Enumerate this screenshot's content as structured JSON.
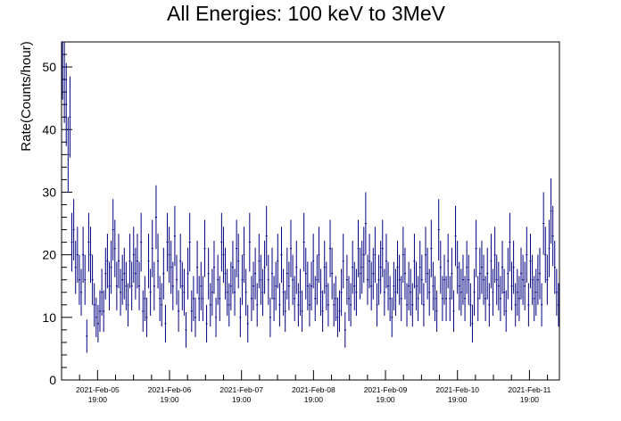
{
  "chart_data": {
    "type": "scatter",
    "title": "All Energies:  100 keV to 3MeV",
    "xlabel": "",
    "ylabel": "Rate(Counts/hour)",
    "x_unit": "hour",
    "xlim": [
      "2021-02-05 07:00",
      "2021-02-12 05:00"
    ],
    "ylim": [
      0,
      54
    ],
    "y_ticks": [
      0,
      10,
      20,
      30,
      40,
      50
    ],
    "x_ticks": [
      {
        "date": "2021-Feb-05",
        "time": "19:00"
      },
      {
        "date": "2021-Feb-06",
        "time": "19:00"
      },
      {
        "date": "2021-Feb-07",
        "time": "19:00"
      },
      {
        "date": "2021-Feb-08",
        "time": "19:00"
      },
      {
        "date": "2021-Feb-09",
        "time": "19:00"
      },
      {
        "date": "2021-Feb-10",
        "time": "19:00"
      },
      {
        "date": "2021-Feb-11",
        "time": "19:00"
      }
    ],
    "x_start": "2021-02-05 07:00",
    "grid": false,
    "marker": "cross with sqrt(N) error bar",
    "series_color": "#00007f",
    "values": [
      52,
      48,
      44,
      36,
      42,
      22,
      24,
      18,
      20,
      16,
      14,
      20,
      16,
      7,
      22,
      20,
      16,
      12,
      10,
      9,
      11,
      14,
      11,
      17,
      19,
      15,
      18,
      24,
      21,
      15,
      19,
      14,
      16,
      17,
      15,
      12,
      19,
      15,
      20,
      17,
      19,
      15,
      22,
      11,
      13,
      10,
      19,
      14,
      21,
      15,
      26,
      19,
      13,
      12,
      17,
      9,
      22,
      20,
      18,
      15,
      23,
      16,
      11,
      19,
      15,
      14,
      8,
      17,
      22,
      11,
      13,
      10,
      18,
      13,
      15,
      13,
      21,
      9,
      17,
      12,
      14,
      18,
      10,
      16,
      13,
      22,
      20,
      17,
      14,
      12,
      15,
      18,
      14,
      21,
      19,
      10,
      16,
      20,
      14,
      9,
      22,
      13,
      15,
      17,
      12,
      19,
      16,
      14,
      18,
      23,
      16,
      10,
      17,
      13,
      15,
      19,
      12,
      20,
      14,
      11,
      17,
      15,
      21,
      16,
      13,
      18,
      12,
      14,
      11,
      22,
      17,
      15,
      12,
      15,
      19,
      13,
      16,
      20,
      14,
      11,
      18,
      15,
      12,
      21,
      17,
      12,
      13,
      10,
      11,
      14,
      19,
      8,
      16,
      13,
      12,
      18,
      15,
      14,
      21,
      17,
      18,
      20,
      25,
      16,
      19,
      15,
      17,
      20,
      12,
      16,
      18,
      21,
      14,
      19,
      15,
      13,
      10,
      15,
      14,
      18,
      16,
      13,
      20,
      17,
      12,
      15,
      14,
      12,
      19,
      15,
      13,
      18,
      16,
      12,
      20,
      17,
      14,
      21,
      15,
      13,
      11,
      24,
      18,
      13,
      16,
      13,
      19,
      13,
      17,
      11,
      23,
      18,
      15,
      14,
      16,
      13,
      18,
      16,
      12,
      9,
      14,
      21,
      13,
      17,
      18,
      16,
      13,
      17,
      12,
      19,
      14,
      20,
      16,
      15,
      13,
      18,
      14,
      11,
      17,
      22,
      15,
      18,
      12,
      14,
      13,
      17,
      16,
      15,
      20,
      12,
      19,
      16,
      13,
      14,
      16,
      17,
      12,
      25,
      20,
      16,
      21,
      27,
      23,
      18,
      14,
      12
    ]
  }
}
